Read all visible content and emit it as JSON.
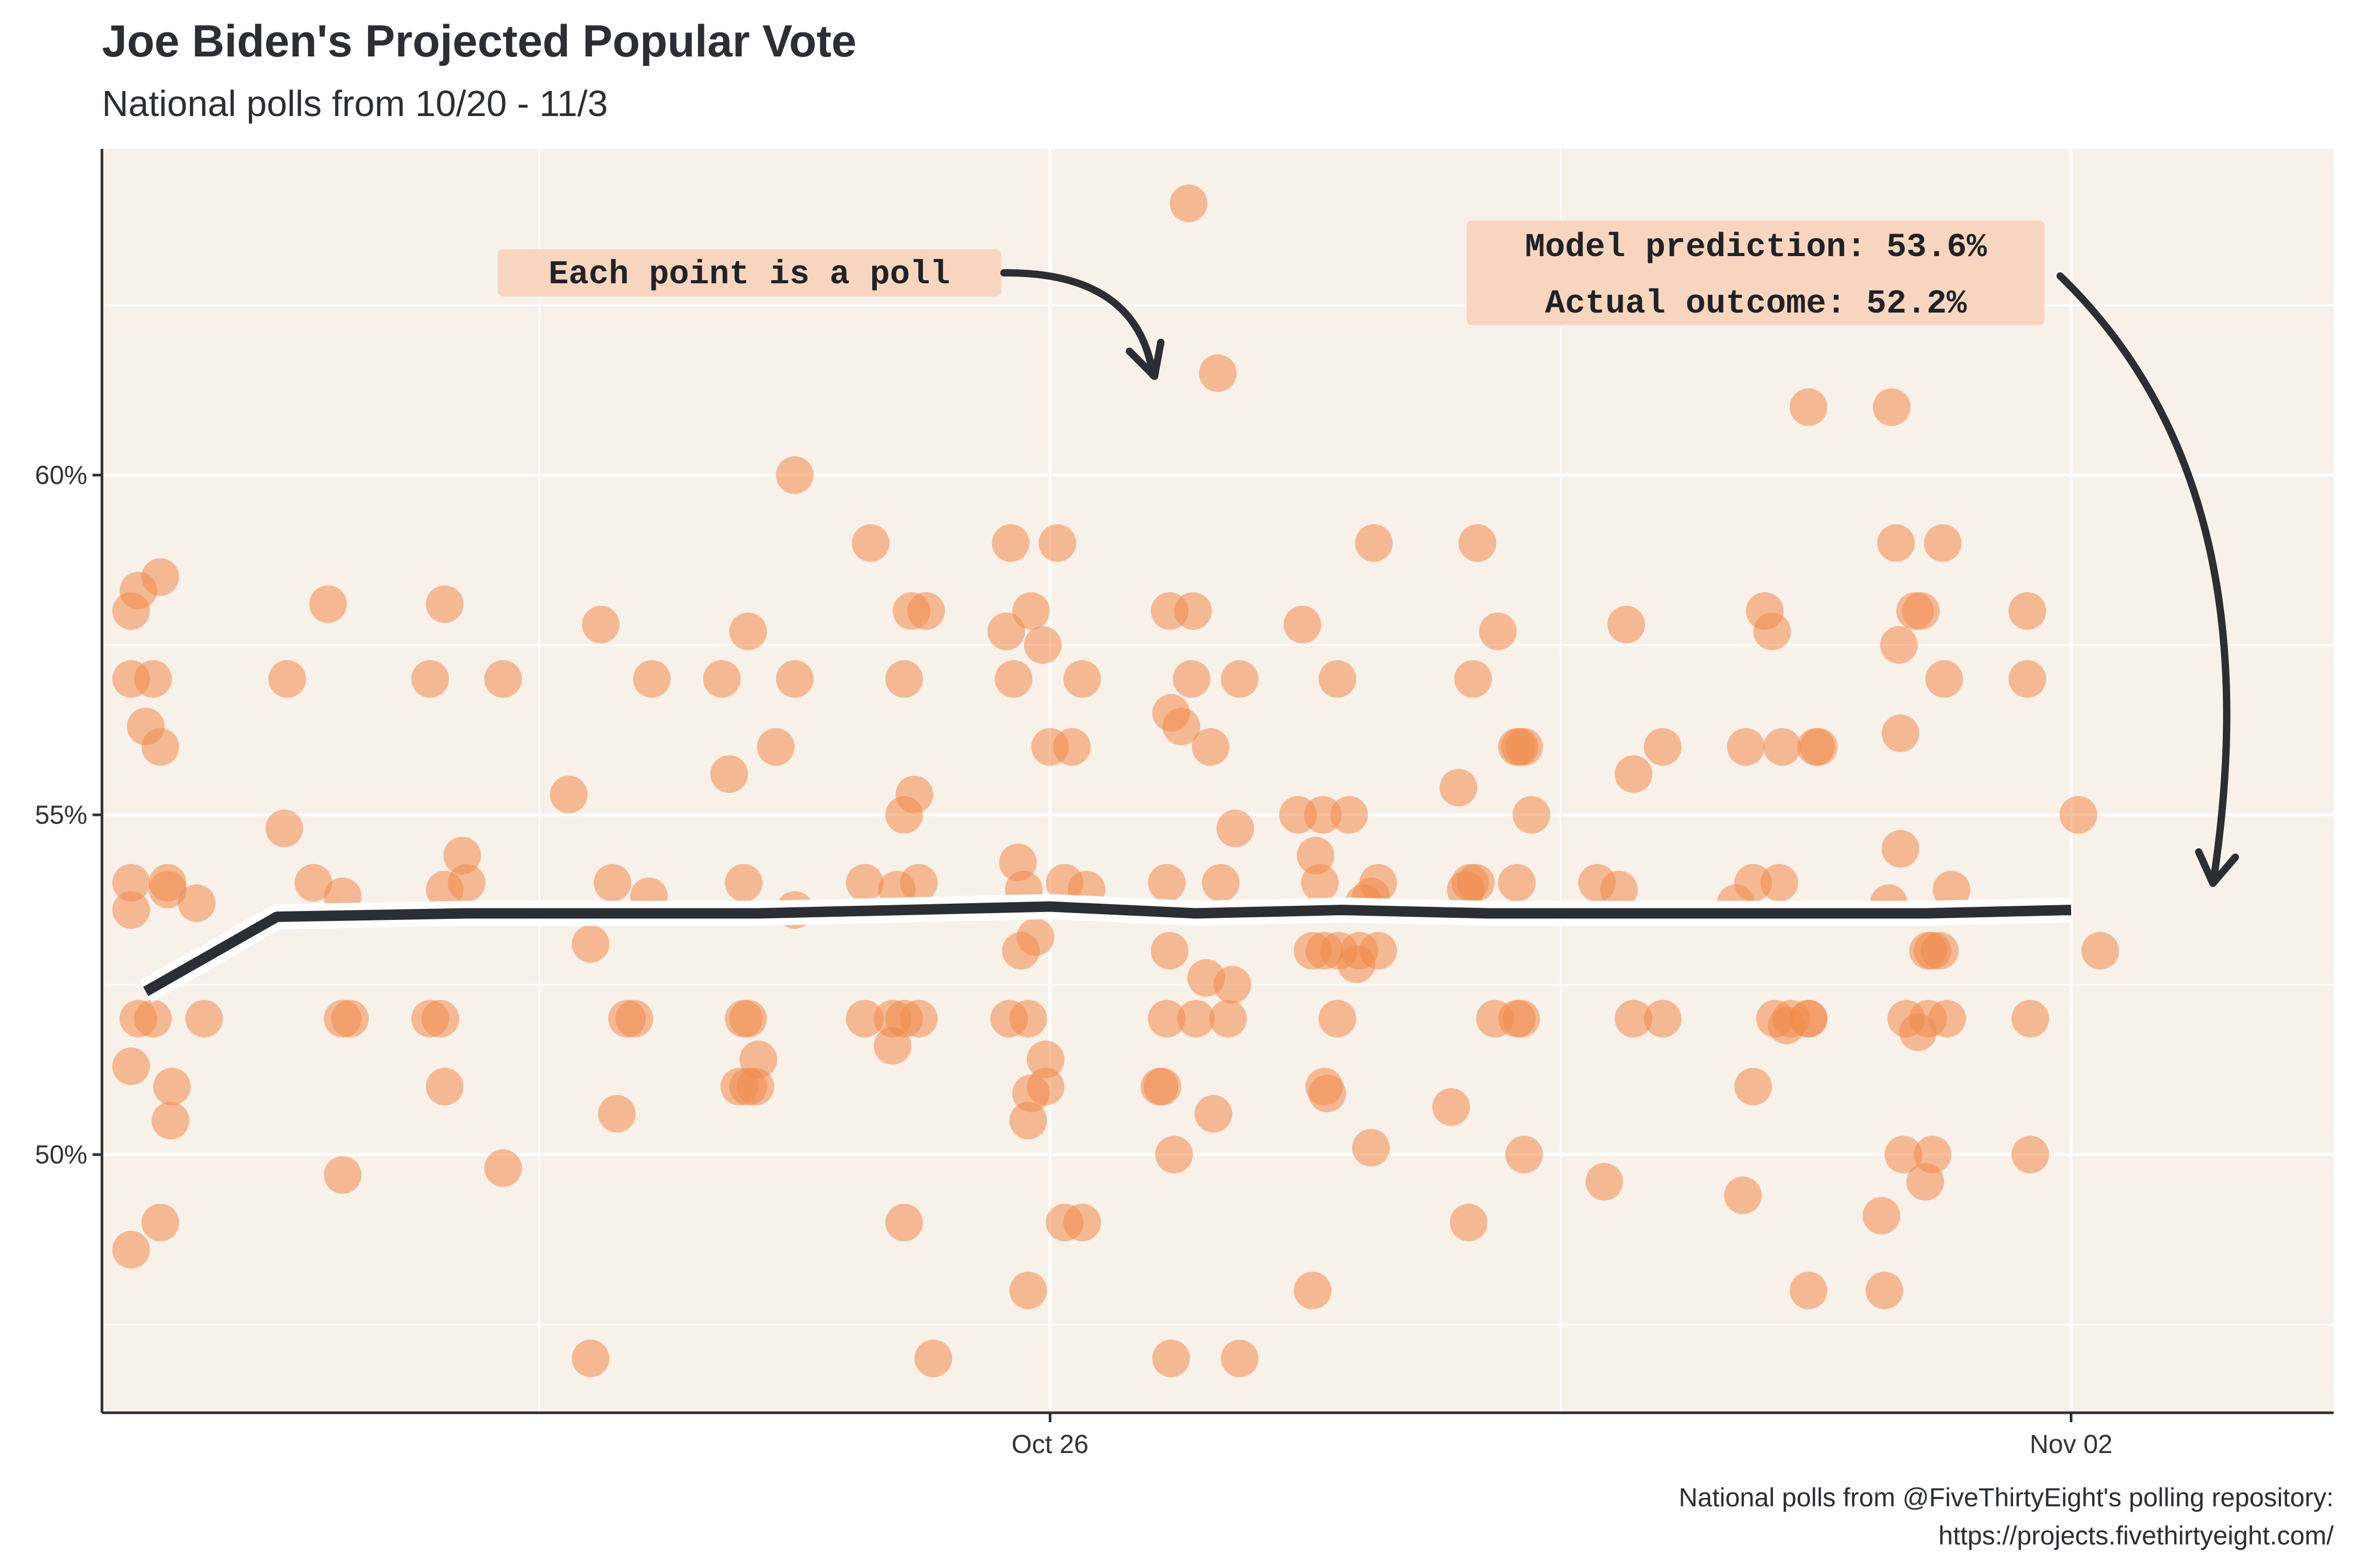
{
  "colors": {
    "panel": "#f8f1ea",
    "grid": "#ffffff",
    "point": "#f08a4b",
    "line": "#2b2f33",
    "label_box": "#f8d5bf",
    "text": "#2b2f33"
  },
  "chart_data": {
    "type": "scatter",
    "title": "Joe Biden's Projected Popular Vote",
    "subtitle": "National polls from 10/20 - 11/3",
    "caption_line1": "National polls from @FiveThirtyEight's polling repository:",
    "caption_line2": "https://projects.fivethirtyeight.com/",
    "xlabel": "",
    "ylabel": "",
    "x_ticks": [
      {
        "label": "Oct 26",
        "day": 26
      },
      {
        "label": "Nov 02",
        "day": 33
      }
    ],
    "y_ticks": [
      {
        "label": "50%",
        "value": 50
      },
      {
        "label": "55%",
        "value": 55
      },
      {
        "label": "60%",
        "value": 60
      }
    ],
    "xlim": [
      19.5,
      34.8
    ],
    "ylim": [
      46.2,
      64.8
    ],
    "x_unit_note_days": "day of October 2020 (Nov 2 = 33)",
    "polls": [
      [
        19.7,
        53.6
      ],
      [
        19.7,
        48.6
      ],
      [
        19.7,
        51.3
      ],
      [
        19.7,
        57.0
      ],
      [
        19.7,
        58.0
      ],
      [
        19.7,
        54.0
      ],
      [
        19.75,
        58.3
      ],
      [
        19.75,
        52.0
      ],
      [
        19.8,
        56.3
      ],
      [
        19.85,
        57.0
      ],
      [
        19.85,
        52.0
      ],
      [
        19.9,
        56.0
      ],
      [
        19.9,
        49.0
      ],
      [
        19.9,
        58.5
      ],
      [
        19.95,
        54.0
      ],
      [
        19.95,
        53.9
      ],
      [
        19.97,
        50.5
      ],
      [
        19.98,
        51.0
      ],
      [
        20.15,
        53.7
      ],
      [
        20.2,
        52.0
      ],
      [
        20.75,
        54.8
      ],
      [
        20.77,
        57.0
      ],
      [
        20.95,
        54.0
      ],
      [
        21.05,
        58.1
      ],
      [
        21.15,
        53.8
      ],
      [
        21.15,
        52.0
      ],
      [
        21.15,
        49.7
      ],
      [
        21.2,
        52.0
      ],
      [
        21.75,
        52.0
      ],
      [
        21.75,
        57.0
      ],
      [
        21.82,
        52.0
      ],
      [
        21.85,
        51.0
      ],
      [
        21.85,
        58.1
      ],
      [
        21.85,
        53.9
      ],
      [
        21.97,
        54.4
      ],
      [
        22.0,
        54.0
      ],
      [
        22.25,
        57.0
      ],
      [
        22.25,
        49.8
      ],
      [
        22.7,
        55.3
      ],
      [
        22.85,
        53.1
      ],
      [
        22.85,
        47.0
      ],
      [
        22.92,
        57.8
      ],
      [
        23.0,
        54.0
      ],
      [
        23.03,
        50.6
      ],
      [
        23.1,
        52.0
      ],
      [
        23.15,
        52.0
      ],
      [
        23.25,
        53.8
      ],
      [
        23.27,
        57.0
      ],
      [
        23.75,
        57.0
      ],
      [
        23.8,
        55.6
      ],
      [
        23.87,
        51.0
      ],
      [
        23.9,
        52.0
      ],
      [
        23.9,
        54.0
      ],
      [
        23.93,
        52.0
      ],
      [
        23.93,
        57.7
      ],
      [
        23.93,
        51.0
      ],
      [
        23.98,
        51.0
      ],
      [
        24.0,
        51.4
      ],
      [
        24.12,
        56.0
      ],
      [
        24.25,
        57.0
      ],
      [
        24.25,
        53.6
      ],
      [
        24.25,
        60.0
      ],
      [
        24.73,
        52.0
      ],
      [
        24.73,
        54.0
      ],
      [
        24.77,
        59.0
      ],
      [
        24.92,
        52.0
      ],
      [
        24.92,
        51.6
      ],
      [
        24.95,
        53.9
      ],
      [
        25.0,
        52.0
      ],
      [
        25.0,
        55.0
      ],
      [
        25.0,
        57.0
      ],
      [
        25.0,
        49.0
      ],
      [
        25.05,
        58.0
      ],
      [
        25.07,
        55.3
      ],
      [
        25.1,
        52.0
      ],
      [
        25.1,
        54.0
      ],
      [
        25.15,
        58.0
      ],
      [
        25.2,
        47.0
      ],
      [
        25.7,
        57.7
      ],
      [
        25.72,
        52.0
      ],
      [
        25.73,
        59.0
      ],
      [
        25.75,
        57.0
      ],
      [
        25.78,
        54.3
      ],
      [
        25.8,
        53.0
      ],
      [
        25.82,
        53.9
      ],
      [
        25.85,
        52.0
      ],
      [
        25.85,
        50.5
      ],
      [
        25.85,
        48.0
      ],
      [
        25.87,
        50.9
      ],
      [
        25.87,
        58.0
      ],
      [
        25.9,
        53.2
      ],
      [
        25.95,
        57.5
      ],
      [
        25.97,
        51.4
      ],
      [
        25.97,
        51.0
      ],
      [
        26.0,
        56.0
      ],
      [
        26.05,
        59.0
      ],
      [
        26.1,
        54.0
      ],
      [
        26.1,
        49.0
      ],
      [
        26.15,
        56.0
      ],
      [
        26.22,
        57.0
      ],
      [
        26.22,
        49.0
      ],
      [
        26.25,
        53.9
      ],
      [
        26.75,
        51.0
      ],
      [
        26.77,
        51.0
      ],
      [
        26.8,
        54.0
      ],
      [
        26.8,
        52.0
      ],
      [
        26.82,
        53.0
      ],
      [
        26.82,
        58.0
      ],
      [
        26.83,
        56.5
      ],
      [
        26.83,
        47.0
      ],
      [
        26.85,
        50.0
      ],
      [
        26.9,
        56.3
      ],
      [
        26.95,
        64.0
      ],
      [
        26.97,
        57.0
      ],
      [
        26.98,
        58.0
      ],
      [
        27.0,
        52.0
      ],
      [
        27.07,
        52.6
      ],
      [
        27.1,
        56.0
      ],
      [
        27.12,
        50.6
      ],
      [
        27.15,
        61.5
      ],
      [
        27.17,
        54.0
      ],
      [
        27.22,
        52.0
      ],
      [
        27.25,
        52.5
      ],
      [
        27.27,
        54.8
      ],
      [
        27.3,
        47.0
      ],
      [
        27.3,
        57.0
      ],
      [
        27.73,
        57.8
      ],
      [
        27.7,
        55.0
      ],
      [
        27.8,
        48.0
      ],
      [
        27.8,
        53.0
      ],
      [
        27.82,
        54.4
      ],
      [
        27.85,
        54.0
      ],
      [
        27.87,
        55.0
      ],
      [
        27.88,
        53.0
      ],
      [
        27.88,
        51.0
      ],
      [
        27.9,
        50.9
      ],
      [
        27.97,
        52.0
      ],
      [
        27.97,
        57.0
      ],
      [
        27.98,
        53.0
      ],
      [
        28.05,
        55.0
      ],
      [
        28.1,
        52.8
      ],
      [
        28.12,
        53.0
      ],
      [
        28.15,
        53.7
      ],
      [
        28.2,
        50.1
      ],
      [
        28.2,
        53.8
      ],
      [
        28.22,
        59.0
      ],
      [
        28.25,
        53.0
      ],
      [
        28.25,
        54.0
      ],
      [
        28.75,
        50.7
      ],
      [
        28.8,
        55.4
      ],
      [
        28.85,
        53.9
      ],
      [
        28.87,
        49.0
      ],
      [
        28.88,
        54.0
      ],
      [
        28.9,
        57.0
      ],
      [
        28.92,
        54.0
      ],
      [
        28.93,
        59.0
      ],
      [
        29.05,
        52.0
      ],
      [
        29.07,
        57.7
      ],
      [
        29.2,
        56.0
      ],
      [
        29.22,
        56.0
      ],
      [
        29.2,
        54.0
      ],
      [
        29.2,
        52.0
      ],
      [
        29.23,
        52.0
      ],
      [
        29.25,
        50.0
      ],
      [
        29.25,
        56.0
      ],
      [
        29.3,
        55.0
      ],
      [
        29.75,
        54.0
      ],
      [
        29.8,
        49.6
      ],
      [
        29.9,
        53.9
      ],
      [
        29.95,
        57.8
      ],
      [
        30.0,
        52.0
      ],
      [
        30.0,
        55.6
      ],
      [
        30.2,
        52.0
      ],
      [
        30.2,
        56.0
      ],
      [
        30.7,
        53.7
      ],
      [
        30.75,
        49.4
      ],
      [
        30.77,
        56.0
      ],
      [
        30.82,
        54.0
      ],
      [
        30.82,
        51.0
      ],
      [
        30.9,
        58.0
      ],
      [
        30.95,
        57.7
      ],
      [
        30.97,
        52.0
      ],
      [
        31.0,
        54.0
      ],
      [
        31.02,
        56.0
      ],
      [
        31.05,
        51.9
      ],
      [
        31.08,
        52.0
      ],
      [
        31.2,
        52.0
      ],
      [
        31.2,
        61.0
      ],
      [
        31.2,
        48.0
      ],
      [
        31.2,
        52.0
      ],
      [
        31.25,
        56.0
      ],
      [
        31.27,
        56.0
      ],
      [
        31.7,
        49.1
      ],
      [
        31.72,
        48.0
      ],
      [
        31.75,
        53.7
      ],
      [
        31.77,
        61.0
      ],
      [
        31.8,
        59.0
      ],
      [
        31.82,
        57.5
      ],
      [
        31.83,
        56.2
      ],
      [
        31.83,
        54.5
      ],
      [
        31.85,
        50.0
      ],
      [
        31.87,
        52.0
      ],
      [
        31.93,
        58.0
      ],
      [
        31.95,
        51.8
      ],
      [
        31.97,
        58.0
      ],
      [
        32.0,
        49.6
      ],
      [
        32.02,
        52.0
      ],
      [
        32.02,
        53.0
      ],
      [
        32.05,
        50.0
      ],
      [
        32.05,
        53.0
      ],
      [
        32.1,
        53.0
      ],
      [
        32.12,
        59.0
      ],
      [
        32.13,
        57.0
      ],
      [
        32.15,
        52.0
      ],
      [
        32.18,
        53.9
      ],
      [
        32.7,
        58.0
      ],
      [
        32.7,
        57.0
      ],
      [
        32.72,
        50.0
      ],
      [
        32.72,
        52.0
      ],
      [
        33.05,
        55.0
      ],
      [
        33.2,
        53.0
      ]
    ],
    "series": [
      {
        "points": [
          [
            19.8,
            52.4
          ],
          [
            20.7,
            53.5
          ],
          [
            22.0,
            53.55
          ],
          [
            24.0,
            53.55
          ],
          [
            25.0,
            53.6
          ],
          [
            26.0,
            53.65
          ],
          [
            26.5,
            53.6
          ],
          [
            27.0,
            53.55
          ],
          [
            28.0,
            53.6
          ],
          [
            29.0,
            53.55
          ],
          [
            30.0,
            53.55
          ],
          [
            31.0,
            53.55
          ],
          [
            32.0,
            53.55
          ],
          [
            33.0,
            53.6
          ]
        ]
      }
    ],
    "annotations": [
      {
        "text": "Each point is a poll"
      },
      {
        "text": "Model prediction: 53.6%"
      },
      {
        "text": "Actual outcome: 52.2%"
      }
    ]
  }
}
